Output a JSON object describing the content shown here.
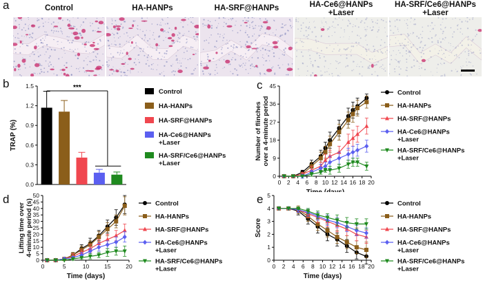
{
  "panels": {
    "a": "a",
    "b": "b",
    "c": "c",
    "d": "d",
    "e": "e"
  },
  "histology": {
    "titles": [
      {
        "line1": "Control",
        "line2": ""
      },
      {
        "line1": "HA-HANPs",
        "line2": ""
      },
      {
        "line1": "HA-SRF@HANPs",
        "line2": ""
      },
      {
        "line1": "HA-Ce6@HANPs",
        "line2": "+Laser"
      },
      {
        "line1": "HA-SRF/Ce6@HANPs",
        "line2": "+Laser"
      }
    ],
    "stain_intensity": [
      1.0,
      0.7,
      0.45,
      0.08,
      0.04
    ]
  },
  "colors": {
    "control": "#000000",
    "ha_hanps": "#8b5e1a",
    "ha_srf": "#f0474f",
    "ha_ce6": "#5b5ff0",
    "ha_srf_ce6": "#1f8a1f",
    "background": "#ffffff"
  },
  "chart_data": [
    {
      "id": "b",
      "type": "bar",
      "ylabel": "TRAP (%)",
      "ylim": [
        0,
        1.5
      ],
      "yticks": [
        0.0,
        0.3,
        0.6,
        0.9,
        1.2,
        1.5
      ],
      "ytick_labels": [
        "0.0",
        "0.3",
        "0.6",
        "0.9",
        "1.2",
        "1.5"
      ],
      "categories": [
        "Control",
        "HA-HANPs",
        "HA-SRF@HANPs",
        "HA-Ce6@HANPs\n+Laser",
        "HA-SRF/Ce6@HANPs\n+Laser"
      ],
      "legend": [
        {
          "line1": "Control",
          "line2": ""
        },
        {
          "line1": "HA-HANPs",
          "line2": ""
        },
        {
          "line1": "HA-SRF@HANPs",
          "line2": ""
        },
        {
          "line1": "HA-Ce6@HANPs",
          "line2": "+Laser"
        },
        {
          "line1": "HA-SRF/Ce6@HANPs",
          "line2": "+Laser"
        }
      ],
      "values": [
        1.17,
        1.11,
        0.41,
        0.18,
        0.15
      ],
      "errors": [
        0.25,
        0.17,
        0.08,
        0.05,
        0.04
      ],
      "significance": "***"
    },
    {
      "id": "c",
      "type": "line",
      "xlabel": "Time (days)",
      "ylabel_line1": "Number of flinches",
      "ylabel_line2": "over a 4-minute period",
      "xlim": [
        0,
        20
      ],
      "xticks": [
        0,
        2,
        4,
        6,
        8,
        10,
        12,
        14,
        16,
        18,
        20
      ],
      "ylim": [
        0,
        45
      ],
      "yticks": [
        0,
        9,
        18,
        27,
        36,
        45
      ],
      "x": [
        1,
        3,
        5,
        7,
        9,
        10,
        11,
        13,
        15,
        16,
        17,
        19
      ],
      "series": [
        {
          "name": "Control",
          "line2": "",
          "values": [
            0,
            0,
            2,
            6,
            10,
            14,
            18,
            24,
            30,
            33,
            35,
            39
          ],
          "errors": [
            0,
            0,
            1,
            2,
            3,
            3,
            4,
            4,
            4,
            4,
            4,
            2
          ]
        },
        {
          "name": "HA-HANPs",
          "line2": "",
          "values": [
            0,
            0,
            1,
            5,
            9,
            12,
            16,
            22,
            28,
            31,
            34,
            37
          ],
          "errors": [
            0,
            0,
            1,
            2,
            3,
            3,
            4,
            4,
            4,
            4,
            4,
            3
          ]
        },
        {
          "name": "HA-SRF@HANPs",
          "line2": "",
          "values": [
            0,
            0,
            1,
            3,
            5,
            8,
            10,
            12,
            17,
            19,
            21,
            25
          ],
          "errors": [
            0,
            0,
            1,
            2,
            2,
            3,
            3,
            3,
            4,
            4,
            4,
            4
          ]
        },
        {
          "name": "HA-Ce6@HANPs",
          "line2": "+Laser",
          "values": [
            0,
            0,
            0,
            2,
            4,
            5,
            7,
            9,
            11,
            12,
            13,
            15
          ],
          "errors": [
            0,
            0,
            1,
            1,
            2,
            2,
            3,
            3,
            3,
            3,
            3,
            3
          ]
        },
        {
          "name": "HA-SRF/Ce6@HANPs",
          "line2": "+Laser",
          "values": [
            0,
            0,
            0,
            1,
            2,
            3,
            3,
            4,
            6,
            7,
            7,
            5
          ],
          "errors": [
            0,
            0,
            0,
            1,
            1,
            1,
            2,
            2,
            2,
            2,
            2,
            2
          ]
        }
      ]
    },
    {
      "id": "d",
      "type": "line",
      "xlabel": "Time (days)",
      "ylabel_line1": "Lifting time  over",
      "ylabel_line2": "4-minute period (s)",
      "xlim": [
        0,
        20
      ],
      "xticks": [
        0,
        5,
        10,
        15,
        20
      ],
      "ylim": [
        0,
        50
      ],
      "yticks": [
        0,
        5,
        10,
        15,
        20,
        25,
        30,
        35,
        40,
        45,
        50
      ],
      "x": [
        1,
        3,
        5,
        7,
        9,
        11,
        13,
        15,
        17,
        19
      ],
      "series": [
        {
          "name": "Control",
          "line2": "",
          "values": [
            0,
            0,
            1,
            4,
            9,
            13,
            19,
            26,
            33,
            43
          ],
          "errors": [
            0,
            0,
            1,
            2,
            3,
            4,
            4,
            5,
            6,
            7
          ]
        },
        {
          "name": "HA-HANPs",
          "line2": "",
          "values": [
            0,
            0,
            1,
            4,
            8,
            12,
            18,
            24,
            30,
            42
          ],
          "errors": [
            0,
            0,
            1,
            2,
            3,
            3,
            4,
            5,
            5,
            7
          ]
        },
        {
          "name": "HA-SRF@HANPs",
          "line2": "",
          "values": [
            0,
            0,
            1,
            3,
            6,
            9,
            13,
            16,
            19,
            23
          ],
          "errors": [
            0,
            0,
            1,
            2,
            2,
            3,
            3,
            4,
            4,
            5
          ]
        },
        {
          "name": "HA-Ce6@HANPs",
          "line2": "+Laser",
          "values": [
            0,
            0,
            1,
            2,
            4,
            7,
            10,
            12,
            14,
            18
          ],
          "errors": [
            0,
            0,
            1,
            1,
            2,
            2,
            3,
            3,
            4,
            4
          ]
        },
        {
          "name": "HA-SRF/Ce6@HANPs",
          "line2": "+Laser",
          "values": [
            0,
            0,
            0,
            1,
            2,
            3,
            4,
            6,
            7,
            7
          ],
          "errors": [
            0,
            0,
            0,
            1,
            1,
            2,
            2,
            3,
            3,
            4
          ]
        }
      ]
    },
    {
      "id": "e",
      "type": "line",
      "xlabel": "Time (days)",
      "ylabel_line1": "Score",
      "ylabel_line2": "",
      "xlim": [
        0,
        20
      ],
      "xticks": [
        0,
        2,
        4,
        6,
        8,
        10,
        12,
        14,
        16,
        18,
        20
      ],
      "ylim": [
        0,
        5
      ],
      "yticks": [
        0,
        1,
        2,
        3,
        4,
        5
      ],
      "x": [
        1,
        3,
        5,
        7,
        9,
        11,
        13,
        15,
        17,
        19
      ],
      "series": [
        {
          "name": "Control",
          "line2": "",
          "values": [
            4,
            4,
            3.8,
            3.2,
            2.6,
            2.0,
            1.6,
            1.1,
            0.6,
            0.3
          ],
          "errors": [
            0,
            0,
            0.3,
            0.4,
            0.5,
            0.5,
            0.5,
            0.5,
            0.5,
            0.6
          ]
        },
        {
          "name": "HA-HANPs",
          "line2": "",
          "values": [
            4,
            4,
            3.9,
            3.4,
            2.8,
            2.3,
            1.8,
            1.4,
            1.0,
            0.8
          ],
          "errors": [
            0,
            0,
            0.3,
            0.4,
            0.5,
            0.5,
            0.5,
            0.5,
            0.5,
            0.6
          ]
        },
        {
          "name": "HA-SRF@HANPs",
          "line2": "",
          "values": [
            4,
            4,
            3.9,
            3.6,
            3.3,
            3.0,
            2.7,
            2.4,
            2.0,
            1.8
          ],
          "errors": [
            0,
            0,
            0.2,
            0.3,
            0.4,
            0.4,
            0.5,
            0.5,
            0.5,
            0.5
          ]
        },
        {
          "name": "HA-Ce6@HANPs",
          "line2": "+Laser",
          "values": [
            4,
            4,
            3.9,
            3.7,
            3.4,
            3.1,
            2.9,
            2.6,
            2.3,
            2.1
          ],
          "errors": [
            0,
            0,
            0.2,
            0.3,
            0.3,
            0.4,
            0.4,
            0.4,
            0.4,
            0.4
          ]
        },
        {
          "name": "HA-SRF/Ce6@HANPs",
          "line2": "+Laser",
          "values": [
            4,
            4,
            4.0,
            3.8,
            3.5,
            3.3,
            3.1,
            2.9,
            2.8,
            2.8
          ],
          "errors": [
            0,
            0,
            0.1,
            0.2,
            0.3,
            0.3,
            0.4,
            0.4,
            0.4,
            0.4
          ]
        }
      ]
    }
  ]
}
